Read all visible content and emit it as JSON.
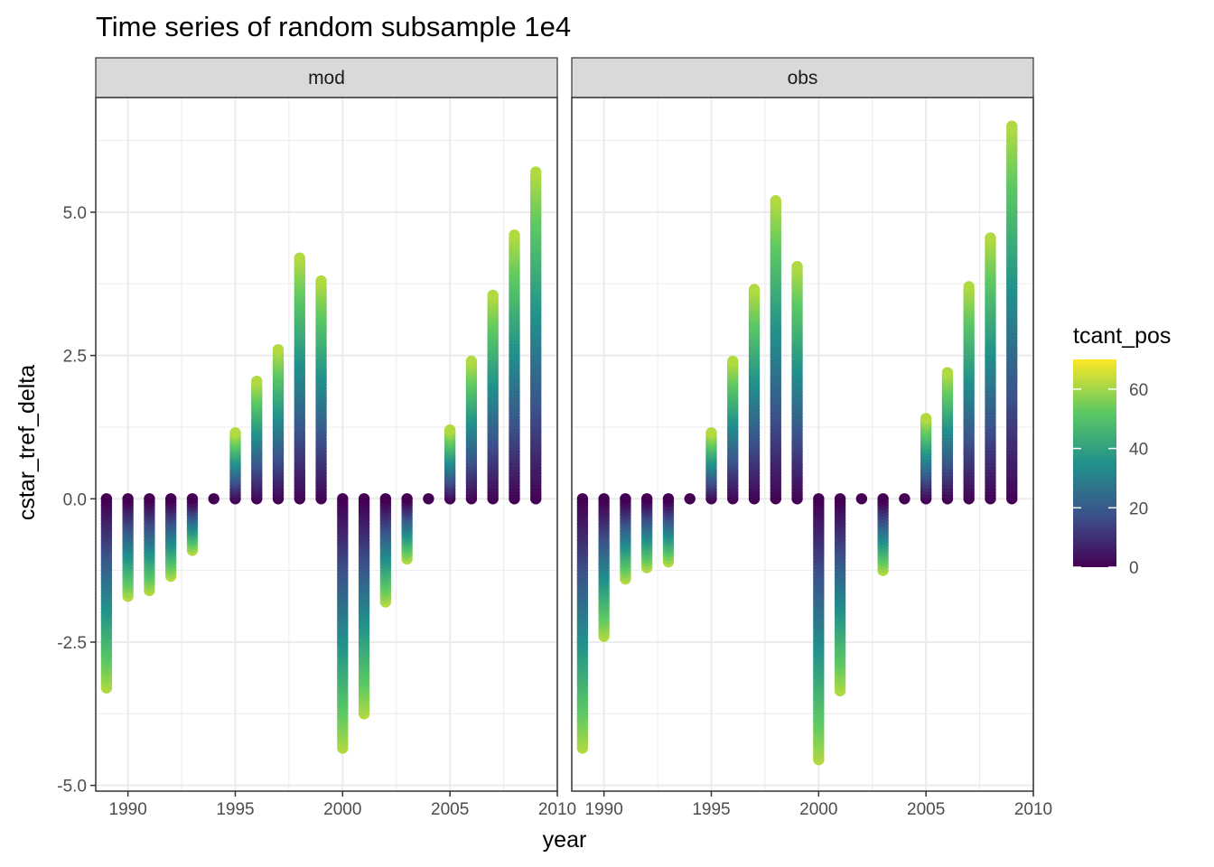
{
  "chart_data": {
    "type": "scatter",
    "title": "Time series of random subsample 1e4",
    "xlabel": "year",
    "ylabel": "cstar_tref_delta",
    "xlim": [
      1988.5,
      2010
    ],
    "ylim": [
      -5.1,
      7.0
    ],
    "x_ticks": [
      1990,
      1995,
      2000,
      2005,
      2010
    ],
    "x_tick_labels": [
      "1990",
      "1995",
      "2000",
      "2005",
      "2010"
    ],
    "y_ticks": [
      -5.0,
      -2.5,
      0.0,
      2.5,
      5.0
    ],
    "y_tick_labels": [
      "-5.0",
      "-2.5",
      "0.0",
      "2.5",
      "5.0"
    ],
    "grid": true,
    "legend": {
      "title": "tcant_pos",
      "placement": "right",
      "range": [
        0,
        70
      ],
      "ticks": [
        0,
        20,
        40,
        60
      ],
      "tick_labels": [
        "0",
        "20",
        "40",
        "60"
      ],
      "colormap": [
        "#440154",
        "#3b528b",
        "#21918c",
        "#5ec962",
        "#fde725"
      ]
    },
    "panels": [
      {
        "name": "mod",
        "columns": [
          {
            "x": 1989,
            "min": -3.3,
            "max": 0.0
          },
          {
            "x": 1990,
            "min": -1.7,
            "max": 0.0
          },
          {
            "x": 1991,
            "min": -1.6,
            "max": 0.0
          },
          {
            "x": 1992,
            "min": -1.35,
            "max": 0.0
          },
          {
            "x": 1993,
            "min": -0.9,
            "max": 0.0
          },
          {
            "x": 1994,
            "min": 0.0,
            "max": 0.0
          },
          {
            "x": 1995,
            "min": 0.0,
            "max": 1.15
          },
          {
            "x": 1996,
            "min": 0.0,
            "max": 2.05
          },
          {
            "x": 1997,
            "min": 0.0,
            "max": 2.6
          },
          {
            "x": 1998,
            "min": 0.0,
            "max": 4.2
          },
          {
            "x": 1999,
            "min": 0.0,
            "max": 3.8
          },
          {
            "x": 2000,
            "min": -4.35,
            "max": 0.0
          },
          {
            "x": 2001,
            "min": -3.75,
            "max": 0.0
          },
          {
            "x": 2002,
            "min": -1.8,
            "max": 0.0
          },
          {
            "x": 2003,
            "min": -1.05,
            "max": 0.0
          },
          {
            "x": 2004,
            "min": 0.0,
            "max": 0.0
          },
          {
            "x": 2005,
            "min": 0.0,
            "max": 1.2
          },
          {
            "x": 2006,
            "min": 0.0,
            "max": 2.4
          },
          {
            "x": 2007,
            "min": 0.0,
            "max": 3.55
          },
          {
            "x": 2008,
            "min": 0.0,
            "max": 4.6
          },
          {
            "x": 2009,
            "min": 0.0,
            "max": 5.7
          }
        ]
      },
      {
        "name": "obs",
        "columns": [
          {
            "x": 1989,
            "min": -4.35,
            "max": 0.0
          },
          {
            "x": 1990,
            "min": -2.4,
            "max": 0.0
          },
          {
            "x": 1991,
            "min": -1.4,
            "max": 0.0
          },
          {
            "x": 1992,
            "min": -1.2,
            "max": 0.0
          },
          {
            "x": 1993,
            "min": -1.1,
            "max": 0.0
          },
          {
            "x": 1994,
            "min": 0.0,
            "max": 0.0
          },
          {
            "x": 1995,
            "min": 0.0,
            "max": 1.15
          },
          {
            "x": 1996,
            "min": 0.0,
            "max": 2.4
          },
          {
            "x": 1997,
            "min": 0.0,
            "max": 3.65
          },
          {
            "x": 1998,
            "min": 0.0,
            "max": 5.2
          },
          {
            "x": 1999,
            "min": 0.0,
            "max": 4.05
          },
          {
            "x": 2000,
            "min": -4.55,
            "max": 0.0
          },
          {
            "x": 2001,
            "min": -3.35,
            "max": 0.0
          },
          {
            "x": 2002,
            "min": 0.0,
            "max": 0.0
          },
          {
            "x": 2003,
            "min": -1.25,
            "max": 0.0
          },
          {
            "x": 2004,
            "min": 0.0,
            "max": 0.0
          },
          {
            "x": 2005,
            "min": 0.0,
            "max": 1.4
          },
          {
            "x": 2006,
            "min": 0.0,
            "max": 2.2
          },
          {
            "x": 2007,
            "min": 0.0,
            "max": 3.7
          },
          {
            "x": 2008,
            "min": 0.0,
            "max": 4.55
          },
          {
            "x": 2009,
            "min": 0.0,
            "max": 6.5
          }
        ]
      }
    ]
  }
}
